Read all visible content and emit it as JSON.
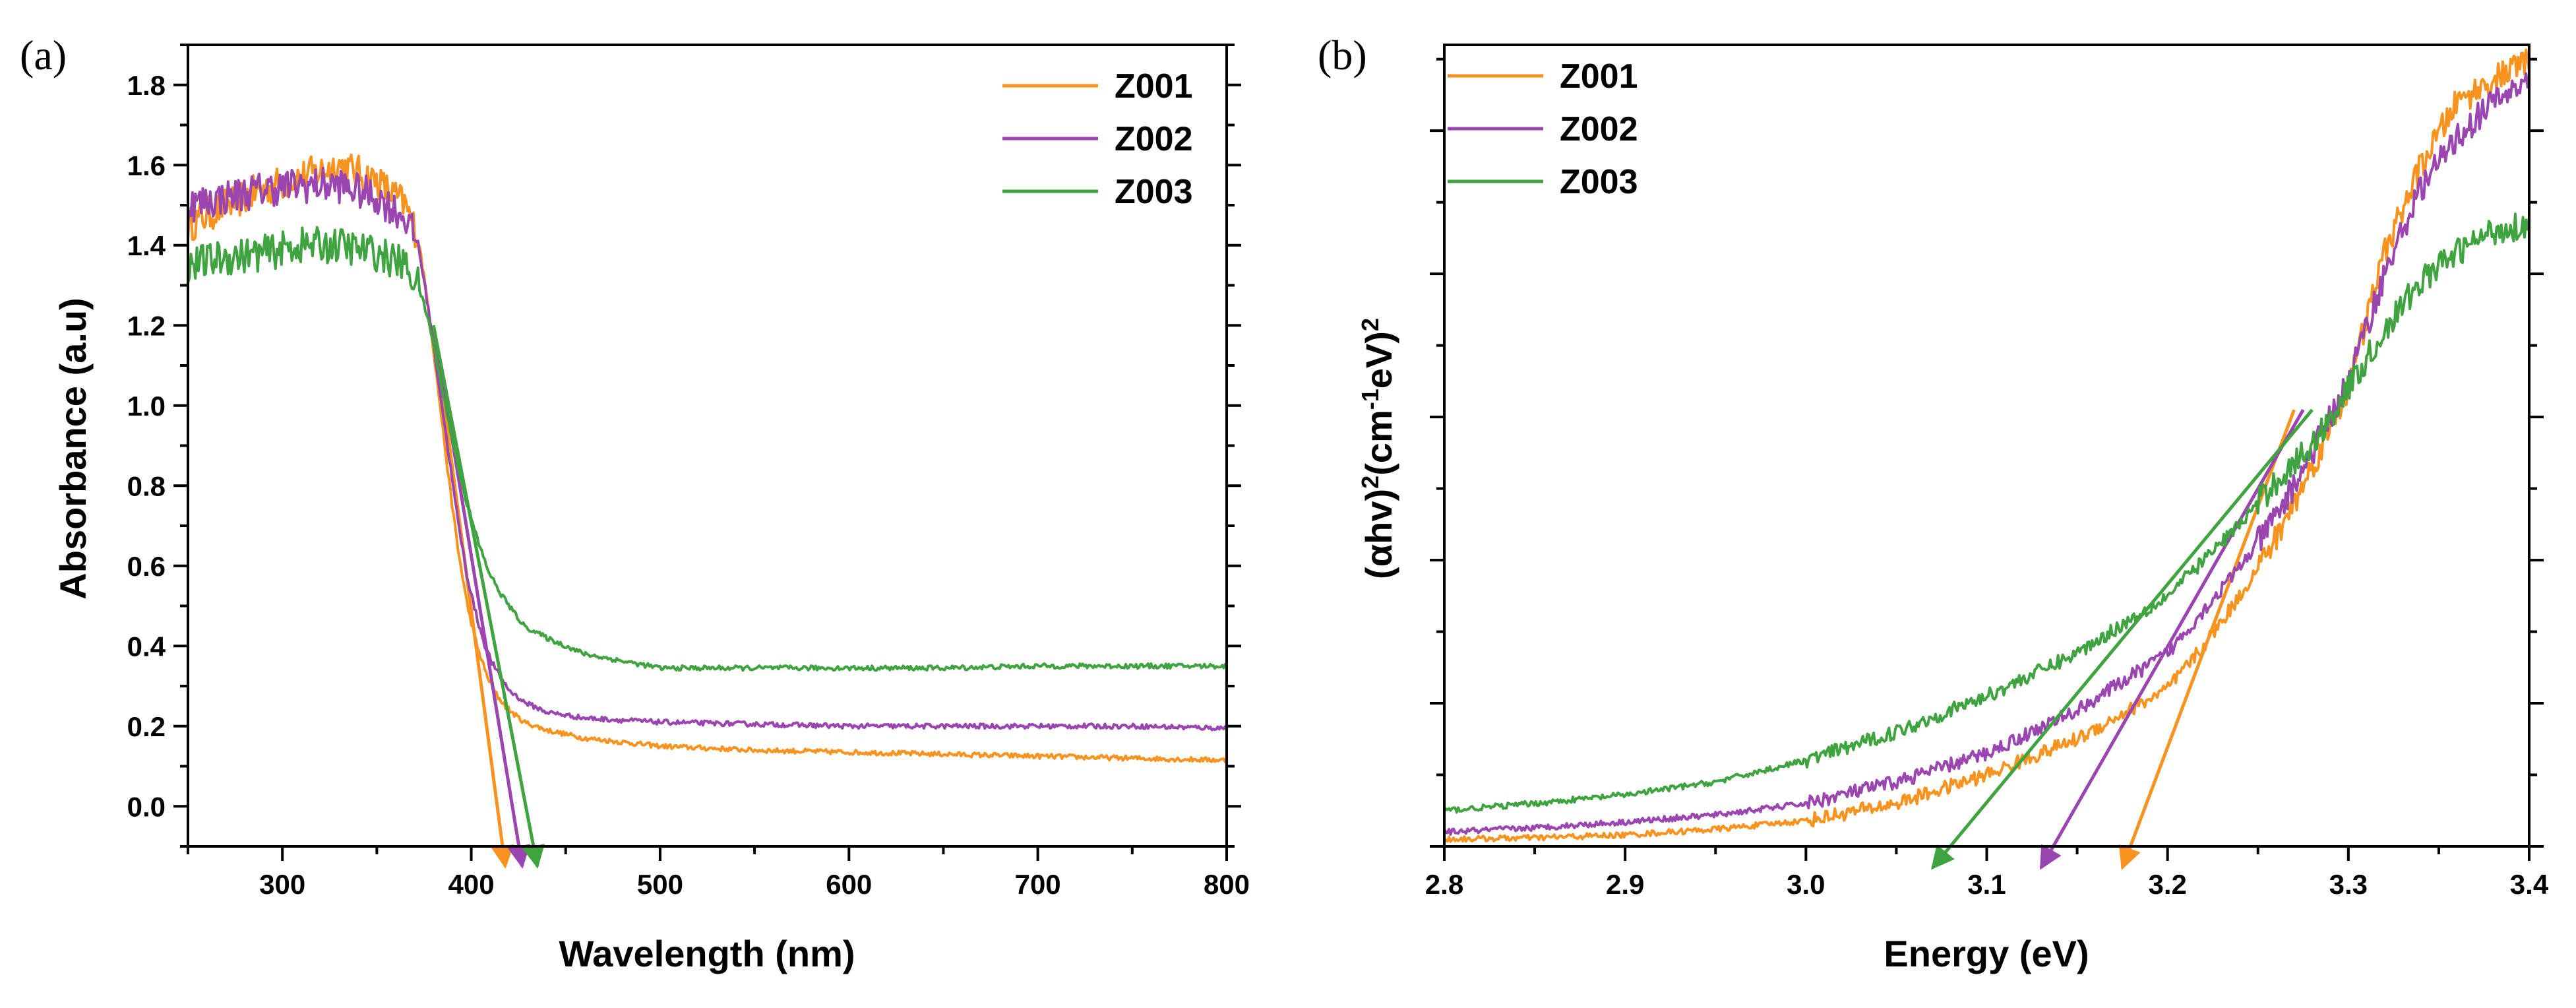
{
  "chart_data": [
    {
      "panel": "(a)",
      "type": "line",
      "xlabel": "Wavelength (nm)",
      "ylabel": "Absorbance (a.u)",
      "xlim": [
        250,
        800
      ],
      "ylim": [
        -0.1,
        1.9
      ],
      "xticks": [
        300,
        400,
        500,
        600,
        700,
        800
      ],
      "yticks": [
        0.0,
        0.2,
        0.4,
        0.6,
        0.8,
        1.0,
        1.2,
        1.4,
        1.6,
        1.8
      ],
      "xtick_labels": [
        "300",
        "400",
        "500",
        "600",
        "700",
        "800"
      ],
      "ytick_labels": [
        "0.0",
        "0.2",
        "0.4",
        "0.6",
        "0.8",
        "1.0",
        "1.2",
        "1.4",
        "1.6",
        "1.8"
      ],
      "legend_position": "top-right",
      "series": [
        {
          "name": "Z001",
          "color": "#F7931E",
          "x": [
            250,
            270,
            290,
            310,
            330,
            350,
            365,
            372,
            378,
            383,
            388,
            393,
            398,
            403,
            408,
            413,
            420,
            428,
            440,
            460,
            500,
            550,
            600,
            650,
            700,
            750,
            800
          ],
          "y": [
            1.45,
            1.5,
            1.54,
            1.57,
            1.6,
            1.56,
            1.5,
            1.42,
            1.22,
            1.02,
            0.82,
            0.64,
            0.5,
            0.4,
            0.33,
            0.28,
            0.24,
            0.21,
            0.19,
            0.17,
            0.15,
            0.14,
            0.135,
            0.13,
            0.125,
            0.12,
            0.115
          ],
          "tangent": {
            "x": [
              380,
              418
            ],
            "y": [
              1.2,
              -0.15
            ]
          }
        },
        {
          "name": "Z002",
          "color": "#9B45B1",
          "x": [
            250,
            270,
            290,
            310,
            330,
            350,
            365,
            372,
            378,
            383,
            388,
            393,
            398,
            403,
            408,
            413,
            420,
            428,
            440,
            460,
            500,
            550,
            600,
            650,
            700,
            750,
            800
          ],
          "y": [
            1.5,
            1.52,
            1.54,
            1.55,
            1.55,
            1.52,
            1.47,
            1.4,
            1.22,
            1.05,
            0.88,
            0.71,
            0.57,
            0.47,
            0.39,
            0.34,
            0.29,
            0.26,
            0.235,
            0.22,
            0.21,
            0.205,
            0.2,
            0.2,
            0.2,
            0.2,
            0.195
          ],
          "tangent": {
            "x": [
              380,
              427
            ],
            "y": [
              1.2,
              -0.15
            ]
          }
        },
        {
          "name": "Z003",
          "color": "#3FA33F",
          "x": [
            250,
            270,
            290,
            310,
            330,
            350,
            365,
            372,
            378,
            383,
            388,
            393,
            398,
            403,
            408,
            413,
            420,
            428,
            440,
            460,
            500,
            550,
            600,
            650,
            700,
            750,
            800
          ],
          "y": [
            1.35,
            1.37,
            1.38,
            1.4,
            1.4,
            1.38,
            1.35,
            1.3,
            1.2,
            1.08,
            0.96,
            0.85,
            0.75,
            0.67,
            0.6,
            0.55,
            0.5,
            0.45,
            0.42,
            0.38,
            0.345,
            0.345,
            0.345,
            0.345,
            0.35,
            0.35,
            0.35
          ],
          "tangent": {
            "x": [
              380,
              435
            ],
            "y": [
              1.2,
              -0.15
            ]
          }
        }
      ]
    },
    {
      "panel": "(b)",
      "type": "line",
      "xlabel": "Energy (eV)",
      "ylabel_main": "(αhv)",
      "ylabel_units": "(cm",
      "ylabel_exponents": [
        "2",
        "-1",
        "2"
      ],
      "ylabel_mid": "eV)",
      "xlim": [
        2.8,
        3.4
      ],
      "ylim": [
        0,
        5.6
      ],
      "xticks": [
        2.8,
        2.9,
        3.0,
        3.1,
        3.2,
        3.3,
        3.4
      ],
      "yticks": [
        0,
        1,
        2,
        3,
        4,
        5
      ],
      "xtick_labels": [
        "2.8",
        "2.9",
        "3.0",
        "3.1",
        "3.2",
        "3.3",
        "3.4"
      ],
      "legend_position": "top-left",
      "series": [
        {
          "name": "Z001",
          "color": "#F7931E",
          "x": [
            2.8,
            2.85,
            2.9,
            2.95,
            3.0,
            3.05,
            3.1,
            3.15,
            3.2,
            3.22,
            3.24,
            3.26,
            3.28,
            3.3,
            3.32,
            3.34,
            3.36,
            3.38,
            3.4
          ],
          "y": [
            0.05,
            0.06,
            0.08,
            0.12,
            0.18,
            0.3,
            0.5,
            0.75,
            1.1,
            1.4,
            1.75,
            2.15,
            2.65,
            3.2,
            4.15,
            4.75,
            5.2,
            5.35,
            5.5
          ],
          "tangent": {
            "x": [
              3.27,
              3.175
            ],
            "y": [
              3.05,
              -0.15
            ]
          }
        },
        {
          "name": "Z002",
          "color": "#9B45B1",
          "x": [
            2.8,
            2.85,
            2.9,
            2.95,
            3.0,
            3.05,
            3.1,
            3.15,
            3.2,
            3.22,
            3.24,
            3.26,
            3.28,
            3.3,
            3.32,
            3.34,
            3.36,
            3.38,
            3.4
          ],
          "y": [
            0.1,
            0.13,
            0.17,
            0.22,
            0.3,
            0.45,
            0.65,
            0.95,
            1.35,
            1.65,
            1.95,
            2.3,
            2.75,
            3.25,
            4.0,
            4.6,
            4.95,
            5.2,
            5.35
          ],
          "tangent": {
            "x": [
              3.275,
              3.13
            ],
            "y": [
              3.05,
              -0.15
            ]
          }
        },
        {
          "name": "Z003",
          "color": "#3FA33F",
          "x": [
            2.8,
            2.85,
            2.9,
            2.95,
            3.0,
            3.05,
            3.1,
            3.15,
            3.2,
            3.22,
            3.24,
            3.26,
            3.28,
            3.3,
            3.32,
            3.34,
            3.36,
            3.38,
            3.4
          ],
          "y": [
            0.25,
            0.3,
            0.36,
            0.45,
            0.6,
            0.8,
            1.05,
            1.35,
            1.75,
            2.0,
            2.25,
            2.55,
            2.8,
            3.2,
            3.6,
            3.95,
            4.15,
            4.3,
            4.35
          ],
          "tangent": {
            "x": [
              3.28,
              3.07
            ],
            "y": [
              3.05,
              -0.15
            ]
          }
        }
      ]
    }
  ]
}
